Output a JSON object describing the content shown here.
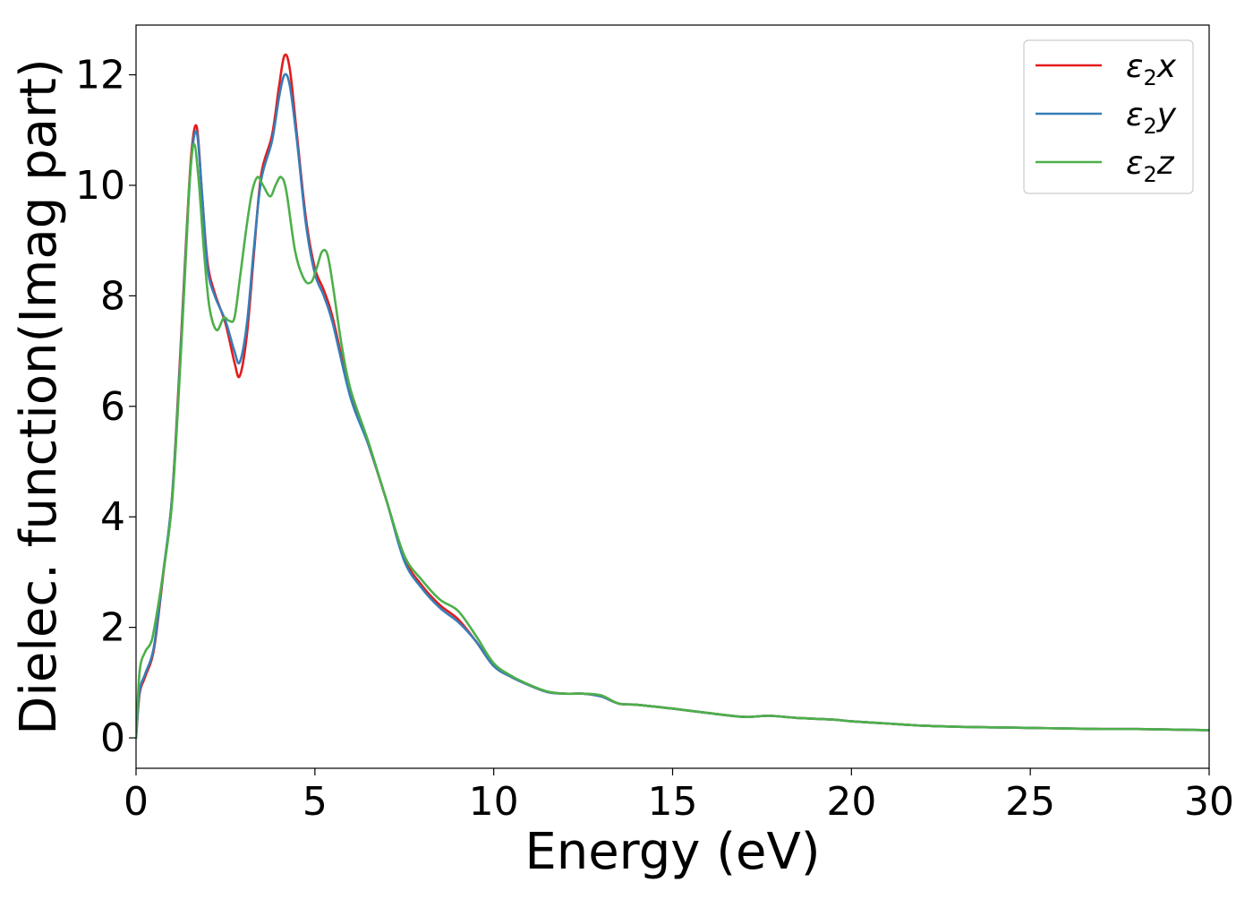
{
  "chart_data": {
    "type": "line",
    "title": "",
    "xlabel": "Energy (eV)",
    "ylabel": "Dielec. function(Imag part)",
    "xlim": [
      0,
      30
    ],
    "ylim": [
      -0.55,
      12.9
    ],
    "xticks": [
      0,
      5,
      10,
      15,
      20,
      25,
      30
    ],
    "yticks": [
      0,
      2,
      4,
      6,
      8,
      10,
      12
    ],
    "grid": false,
    "legend_position": "top-right",
    "series": [
      {
        "name": "ε₂x",
        "legend_base": "ε",
        "legend_sub": "2",
        "legend_var": "x",
        "color": "#e41a1c",
        "x": [
          0,
          0.1,
          0.25,
          0.5,
          0.75,
          1.0,
          1.2,
          1.4,
          1.55,
          1.7,
          1.85,
          2.0,
          2.2,
          2.5,
          2.75,
          2.9,
          3.1,
          3.3,
          3.5,
          3.8,
          4.0,
          4.15,
          4.3,
          4.5,
          4.75,
          5.0,
          5.25,
          5.5,
          6.0,
          6.5,
          7.0,
          7.5,
          8.0,
          8.5,
          9.0,
          9.5,
          10.0,
          10.5,
          11.0,
          11.5,
          12.0,
          12.5,
          13.0,
          13.5,
          14.0,
          15.0,
          16.0,
          17.0,
          17.7,
          18.5,
          19.5,
          20.0,
          21.0,
          22.0,
          23.0,
          24.0,
          25.0,
          26.0,
          27.0,
          28.0,
          29.0,
          30.0
        ],
        "y": [
          0,
          0.8,
          1.1,
          1.6,
          2.9,
          4.3,
          6.5,
          9.0,
          10.6,
          11.05,
          9.8,
          8.6,
          8.05,
          7.5,
          6.8,
          6.55,
          7.3,
          8.8,
          10.2,
          10.9,
          11.8,
          12.35,
          12.1,
          10.9,
          9.4,
          8.5,
          8.1,
          7.6,
          6.2,
          5.3,
          4.3,
          3.25,
          2.75,
          2.4,
          2.15,
          1.75,
          1.3,
          1.1,
          0.95,
          0.83,
          0.8,
          0.8,
          0.75,
          0.62,
          0.6,
          0.53,
          0.45,
          0.38,
          0.4,
          0.36,
          0.33,
          0.3,
          0.26,
          0.22,
          0.2,
          0.19,
          0.18,
          0.17,
          0.16,
          0.16,
          0.15,
          0.14
        ]
      },
      {
        "name": "ε₂y",
        "legend_base": "ε",
        "legend_sub": "2",
        "legend_var": "y",
        "color": "#377eb8",
        "x": [
          0,
          0.1,
          0.25,
          0.5,
          0.75,
          1.0,
          1.2,
          1.4,
          1.55,
          1.7,
          1.85,
          2.0,
          2.2,
          2.5,
          2.75,
          2.9,
          3.1,
          3.3,
          3.5,
          3.8,
          4.0,
          4.15,
          4.3,
          4.5,
          4.75,
          5.0,
          5.25,
          5.5,
          6.0,
          6.5,
          7.0,
          7.5,
          8.0,
          8.5,
          9.0,
          9.5,
          10.0,
          10.5,
          11.0,
          11.5,
          12.0,
          12.5,
          13.0,
          13.5,
          14.0,
          15.0,
          16.0,
          17.0,
          17.7,
          18.5,
          19.5,
          20.0,
          21.0,
          22.0,
          23.0,
          24.0,
          25.0,
          26.0,
          27.0,
          28.0,
          29.0,
          30.0
        ],
        "y": [
          0,
          0.85,
          1.15,
          1.65,
          2.95,
          4.3,
          6.4,
          8.9,
          10.5,
          10.95,
          9.8,
          8.5,
          8.0,
          7.55,
          7.0,
          6.8,
          7.5,
          8.9,
          10.1,
          10.8,
          11.6,
          12.0,
          11.8,
          10.8,
          9.3,
          8.4,
          8.0,
          7.5,
          6.15,
          5.3,
          4.3,
          3.2,
          2.7,
          2.35,
          2.1,
          1.75,
          1.3,
          1.1,
          0.95,
          0.83,
          0.8,
          0.8,
          0.75,
          0.62,
          0.6,
          0.53,
          0.45,
          0.38,
          0.4,
          0.36,
          0.33,
          0.3,
          0.26,
          0.22,
          0.2,
          0.19,
          0.18,
          0.17,
          0.16,
          0.16,
          0.15,
          0.14
        ]
      },
      {
        "name": "ε₂z",
        "legend_base": "ε",
        "legend_sub": "2",
        "legend_var": "z",
        "color": "#4daf4a",
        "x": [
          0,
          0.1,
          0.25,
          0.4,
          0.5,
          0.75,
          1.0,
          1.2,
          1.4,
          1.5,
          1.62,
          1.75,
          1.9,
          2.05,
          2.25,
          2.45,
          2.6,
          2.75,
          2.9,
          3.1,
          3.25,
          3.4,
          3.55,
          3.75,
          3.9,
          4.05,
          4.2,
          4.45,
          4.7,
          4.9,
          5.05,
          5.2,
          5.35,
          5.5,
          5.75,
          6.0,
          6.5,
          7.0,
          7.5,
          8.0,
          8.5,
          9.0,
          9.5,
          10.0,
          10.5,
          11.0,
          11.5,
          12.0,
          12.5,
          13.0,
          13.5,
          14.0,
          15.0,
          16.0,
          17.0,
          17.7,
          18.5,
          19.5,
          20.0,
          21.0,
          22.0,
          23.0,
          24.0,
          25.0,
          26.0,
          27.0,
          28.0,
          29.0,
          30.0
        ],
        "y": [
          0,
          1.2,
          1.55,
          1.7,
          1.95,
          2.95,
          4.2,
          6.3,
          8.8,
          10.1,
          10.75,
          10.1,
          8.8,
          7.8,
          7.38,
          7.6,
          7.55,
          7.6,
          8.3,
          9.3,
          9.9,
          10.15,
          10.0,
          9.8,
          10.0,
          10.15,
          9.9,
          8.8,
          8.3,
          8.25,
          8.5,
          8.8,
          8.75,
          8.2,
          7.1,
          6.3,
          5.35,
          4.3,
          3.3,
          2.85,
          2.5,
          2.3,
          1.85,
          1.35,
          1.12,
          0.96,
          0.84,
          0.8,
          0.8,
          0.77,
          0.62,
          0.6,
          0.53,
          0.45,
          0.38,
          0.4,
          0.36,
          0.33,
          0.3,
          0.26,
          0.22,
          0.2,
          0.19,
          0.18,
          0.17,
          0.16,
          0.16,
          0.15,
          0.14
        ]
      }
    ]
  }
}
